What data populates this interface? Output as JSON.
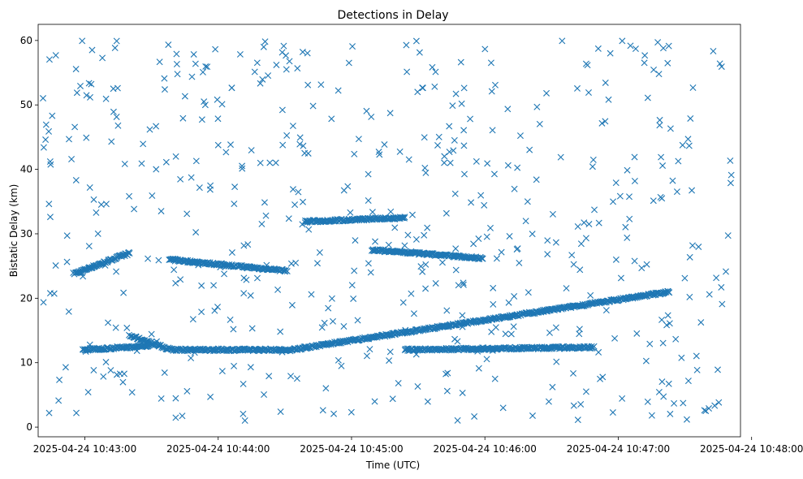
{
  "chart_data": {
    "type": "scatter",
    "title": "Detections in Delay",
    "xlabel": "Time (UTC)",
    "ylabel": "Bistatic Delay (km)",
    "marker": "x",
    "color": "#1f77b4",
    "grid": false,
    "legend": "none",
    "x_unit": "seconds",
    "x_start": "2025-04-24 10:42:39",
    "xlim_seconds": [
      0,
      316
    ],
    "ylim": [
      -1.5,
      62.5
    ],
    "x_ticks": [
      {
        "offset": 21,
        "label": "2025-04-24 10:43:00"
      },
      {
        "offset": 81,
        "label": "2025-04-24 10:44:00"
      },
      {
        "offset": 141,
        "label": "2025-04-24 10:45:00"
      },
      {
        "offset": 201,
        "label": "2025-04-24 10:46:00"
      },
      {
        "offset": 261,
        "label": "2025-04-24 10:47:00"
      },
      {
        "offset": 321,
        "label": "2025-04-24 10:48:00"
      }
    ],
    "y_ticks": [
      0,
      10,
      20,
      30,
      40,
      50,
      60
    ],
    "tracks": [
      {
        "t": [
          16,
          41
        ],
        "y": [
          23.8,
          27.0
        ]
      },
      {
        "t": [
          41,
          60
        ],
        "y": [
          14.2,
          12.0
        ]
      },
      {
        "t": [
          59,
          104
        ],
        "y": [
          26.0,
          24.5
        ]
      },
      {
        "t": [
          60,
          110
        ],
        "y": [
          12.0,
          12.0
        ]
      },
      {
        "t": [
          104,
          112
        ],
        "y": [
          24.5,
          24.3
        ]
      },
      {
        "t": [
          110,
          284
        ],
        "y": [
          11.8,
          21.0
        ]
      },
      {
        "t": [
          120,
          165
        ],
        "y": [
          31.9,
          32.5
        ]
      },
      {
        "t": [
          150,
          200
        ],
        "y": [
          27.5,
          26.2
        ]
      },
      {
        "t": [
          165,
          250
        ],
        "y": [
          12.0,
          12.4
        ]
      },
      {
        "t": [
          20,
          50
        ],
        "y": [
          12.0,
          12.6
        ]
      }
    ],
    "noise_seed": 7,
    "noise_count": 540
  }
}
